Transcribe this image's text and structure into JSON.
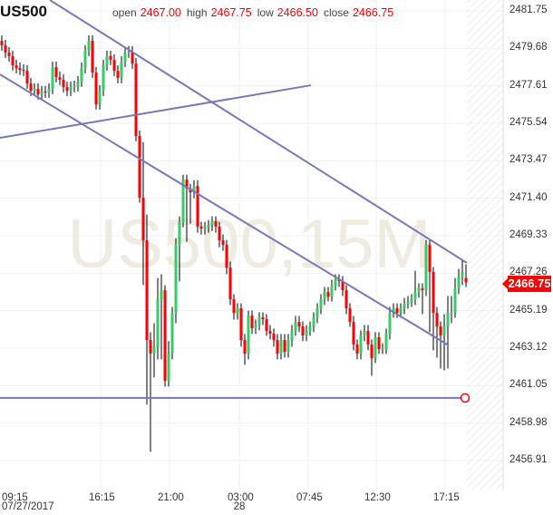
{
  "header": {
    "symbol": "US500",
    "open_label": "open",
    "open": "2467.00",
    "high_label": "high",
    "high": "2467.75",
    "low_label": "low",
    "low": "2466.50",
    "close_label": "close",
    "close": "2466.75"
  },
  "watermark": "US500,15M",
  "current_price": "2466.75",
  "colors": {
    "up": "#33cc66",
    "down": "#ff0000",
    "trendline": "#7777bb",
    "wick": "#000000",
    "badge": "#ff0000"
  },
  "chart_data": {
    "type": "candlestick",
    "interval": "15M",
    "ylim": [
      2456.91,
      2481.75
    ],
    "y_ticks": [
      "2481.75",
      "2479.68",
      "2477.61",
      "2475.54",
      "2473.47",
      "2471.40",
      "2469.33",
      "2467.26",
      "2465.19",
      "2463.12",
      "2461.05",
      "2458.98",
      "2456.91"
    ],
    "x_ticks": [
      {
        "label": "09:15",
        "sub": "07/27/2017"
      },
      {
        "label": "16:15",
        "sub": ""
      },
      {
        "label": "21:00",
        "sub": ""
      },
      {
        "label": "03:00",
        "sub": "28"
      },
      {
        "label": "07:45",
        "sub": ""
      },
      {
        "label": "12:30",
        "sub": ""
      },
      {
        "label": "17:15",
        "sub": ""
      }
    ],
    "grid": true,
    "candles_ohlc": [
      [
        2480.1,
        2480.4,
        2479.55,
        2479.85
      ],
      [
        2479.85,
        2480.15,
        2479.15,
        2479.45
      ],
      [
        2479.45,
        2479.75,
        2478.95,
        2479.25
      ],
      [
        2479.25,
        2479.55,
        2478.45,
        2478.74
      ],
      [
        2478.74,
        2479.05,
        2478.3,
        2478.59
      ],
      [
        2478.59,
        2478.9,
        2478.2,
        2478.49
      ],
      [
        2478.49,
        2478.8,
        2478.15,
        2478.44
      ],
      [
        2478.44,
        2478.75,
        2477.45,
        2477.74
      ],
      [
        2477.74,
        2478.05,
        2477.05,
        2477.34
      ],
      [
        2477.34,
        2477.75,
        2477.05,
        2477.44
      ],
      [
        2477.44,
        2477.75,
        2476.85,
        2477.14
      ],
      [
        2477.14,
        2477.6,
        2476.85,
        2477.29
      ],
      [
        2477.29,
        2477.6,
        2476.95,
        2477.24
      ],
      [
        2477.24,
        2477.75,
        2476.95,
        2477.44
      ],
      [
        2477.44,
        2478.95,
        2477.15,
        2478.64
      ],
      [
        2478.64,
        2478.95,
        2477.8,
        2478.09
      ],
      [
        2478.09,
        2478.4,
        2477.65,
        2477.94
      ],
      [
        2477.94,
        2478.25,
        2477.25,
        2477.54
      ],
      [
        2477.54,
        2477.85,
        2477.05,
        2477.34
      ],
      [
        2477.34,
        2477.85,
        2477.05,
        2477.54
      ],
      [
        2477.54,
        2477.9,
        2477.25,
        2477.59
      ],
      [
        2477.59,
        2478.15,
        2477.3,
        2477.84
      ],
      [
        2477.84,
        2478.9,
        2477.55,
        2478.59
      ],
      [
        2478.59,
        2479.85,
        2478.3,
        2479.55
      ],
      [
        2479.55,
        2480.4,
        2479.25,
        2480.1
      ],
      [
        2480.1,
        2480.4,
        2478.05,
        2478.34
      ],
      [
        2478.34,
        2478.65,
        2476.3,
        2476.59
      ],
      [
        2476.59,
        2477.65,
        2476.3,
        2477.34
      ],
      [
        2477.34,
        2479.05,
        2477.05,
        2478.74
      ],
      [
        2478.74,
        2479.55,
        2478.45,
        2479.25
      ],
      [
        2479.25,
        2479.55,
        2478.75,
        2479.04
      ],
      [
        2479.04,
        2479.35,
        2478.15,
        2478.44
      ],
      [
        2478.44,
        2478.75,
        2477.75,
        2478.04
      ],
      [
        2478.04,
        2479.25,
        2477.75,
        2478.94
      ],
      [
        2478.94,
        2479.75,
        2478.65,
        2479.45
      ],
      [
        2479.45,
        2479.8,
        2479.15,
        2479.5
      ],
      [
        2479.5,
        2479.8,
        2478.55,
        2478.84
      ],
      [
        2478.84,
        2479.15,
        2474.55,
        2474.84
      ],
      [
        2474.84,
        2475.15,
        2471.15,
        2471.43
      ],
      [
        2471.43,
        2474.5,
        2466.6,
        2469.08
      ],
      [
        2469.08,
        2470.5,
        2460.0,
        2463.57
      ],
      [
        2463.57,
        2464.0,
        2457.4,
        2462.82
      ],
      [
        2462.82,
        2464.5,
        2461.5,
        2463.17
      ],
      [
        2463.17,
        2467.0,
        2462.5,
        2465.82
      ],
      [
        2465.82,
        2467.2,
        2462.5,
        2466.32
      ],
      [
        2466.32,
        2466.6,
        2461.0,
        2461.32
      ],
      [
        2461.32,
        2463.5,
        2461.0,
        2462.82
      ],
      [
        2462.82,
        2465.4,
        2462.5,
        2465.07
      ],
      [
        2465.07,
        2469.2,
        2464.5,
        2468.83
      ],
      [
        2468.83,
        2470.4,
        2466.8,
        2470.08
      ],
      [
        2470.08,
        2472.7,
        2469.8,
        2472.43
      ],
      [
        2472.43,
        2472.7,
        2469.0,
        2471.93
      ],
      [
        2471.93,
        2472.2,
        2470.0,
        2471.73
      ],
      [
        2471.73,
        2472.4,
        2471.4,
        2472.08
      ],
      [
        2472.08,
        2472.4,
        2469.5,
        2469.83
      ],
      [
        2469.83,
        2470.1,
        2469.4,
        2469.73
      ],
      [
        2469.73,
        2470.1,
        2469.4,
        2469.83
      ],
      [
        2469.83,
        2470.2,
        2469.5,
        2469.93
      ],
      [
        2469.93,
        2470.4,
        2469.6,
        2470.13
      ],
      [
        2470.13,
        2470.4,
        2469.5,
        2469.83
      ],
      [
        2469.83,
        2470.1,
        2468.7,
        2469.08
      ],
      [
        2469.08,
        2469.4,
        2468.5,
        2468.83
      ],
      [
        2468.83,
        2469.1,
        2467.2,
        2467.58
      ],
      [
        2467.58,
        2467.9,
        2465.5,
        2465.82
      ],
      [
        2465.82,
        2466.1,
        2464.7,
        2465.07
      ],
      [
        2465.07,
        2465.6,
        2464.7,
        2465.32
      ],
      [
        2465.32,
        2465.6,
        2463.2,
        2463.57
      ],
      [
        2463.57,
        2463.9,
        2462.2,
        2462.82
      ],
      [
        2462.82,
        2465.2,
        2462.5,
        2464.92
      ],
      [
        2464.92,
        2465.2,
        2463.9,
        2464.22
      ],
      [
        2464.22,
        2464.7,
        2463.9,
        2464.42
      ],
      [
        2464.42,
        2465.1,
        2464.1,
        2464.82
      ],
      [
        2464.82,
        2465.1,
        2464.4,
        2464.72
      ],
      [
        2464.72,
        2465.0,
        2463.8,
        2464.07
      ],
      [
        2464.07,
        2464.4,
        2463.6,
        2463.92
      ],
      [
        2463.92,
        2464.2,
        2463.2,
        2463.57
      ],
      [
        2463.57,
        2463.9,
        2462.5,
        2462.82
      ],
      [
        2462.82,
        2463.9,
        2462.5,
        2463.57
      ],
      [
        2463.57,
        2463.9,
        2462.6,
        2462.92
      ],
      [
        2462.92,
        2463.9,
        2462.6,
        2463.57
      ],
      [
        2463.57,
        2464.4,
        2463.2,
        2464.07
      ],
      [
        2464.07,
        2464.9,
        2463.8,
        2464.57
      ],
      [
        2464.57,
        2464.9,
        2464.0,
        2464.32
      ],
      [
        2464.32,
        2464.6,
        2463.5,
        2463.82
      ],
      [
        2463.82,
        2464.4,
        2463.5,
        2464.07
      ],
      [
        2464.07,
        2464.6,
        2463.8,
        2464.32
      ],
      [
        2464.32,
        2465.1,
        2464.0,
        2464.82
      ],
      [
        2464.82,
        2465.6,
        2464.5,
        2465.32
      ],
      [
        2465.32,
        2466.1,
        2465.0,
        2465.82
      ],
      [
        2465.82,
        2466.5,
        2465.5,
        2466.22
      ],
      [
        2466.22,
        2466.5,
        2465.7,
        2465.97
      ],
      [
        2465.97,
        2466.9,
        2465.7,
        2466.57
      ],
      [
        2466.57,
        2467.2,
        2466.3,
        2466.92
      ],
      [
        2466.92,
        2467.2,
        2466.5,
        2466.82
      ],
      [
        2466.82,
        2467.1,
        2466.0,
        2466.32
      ],
      [
        2466.32,
        2466.6,
        2465.0,
        2465.32
      ],
      [
        2465.32,
        2465.6,
        2464.3,
        2464.57
      ],
      [
        2464.57,
        2464.9,
        2463.0,
        2463.32
      ],
      [
        2463.32,
        2463.6,
        2462.5,
        2462.82
      ],
      [
        2462.82,
        2464.1,
        2462.5,
        2463.82
      ],
      [
        2463.82,
        2464.4,
        2463.5,
        2464.07
      ],
      [
        2464.07,
        2464.4,
        2463.0,
        2463.32
      ],
      [
        2463.32,
        2463.6,
        2461.6,
        2462.57
      ],
      [
        2462.57,
        2464.0,
        2462.3,
        2463.72
      ],
      [
        2463.72,
        2464.0,
        2462.8,
        2463.07
      ],
      [
        2463.07,
        2463.4,
        2462.8,
        2463.07
      ],
      [
        2463.07,
        2464.2,
        2462.8,
        2463.92
      ],
      [
        2463.92,
        2465.4,
        2463.6,
        2465.07
      ],
      [
        2465.07,
        2465.6,
        2464.8,
        2465.32
      ],
      [
        2465.32,
        2465.6,
        2464.8,
        2465.07
      ],
      [
        2465.07,
        2465.6,
        2464.8,
        2465.32
      ],
      [
        2465.32,
        2465.9,
        2465.0,
        2465.57
      ],
      [
        2465.57,
        2466.0,
        2465.3,
        2465.67
      ],
      [
        2465.67,
        2466.1,
        2465.4,
        2465.82
      ],
      [
        2465.82,
        2467.4,
        2465.5,
        2466.22
      ],
      [
        2466.22,
        2466.7,
        2465.9,
        2466.42
      ],
      [
        2466.42,
        2466.7,
        2465.0,
        2466.32
      ],
      [
        2466.32,
        2469.1,
        2466.0,
        2468.83
      ],
      [
        2468.83,
        2469.1,
        2464.0,
        2467.33
      ],
      [
        2467.33,
        2467.6,
        2463.0,
        2465.07
      ],
      [
        2465.07,
        2465.4,
        2462.6,
        2464.32
      ],
      [
        2464.32,
        2464.6,
        2462.0,
        2463.82
      ],
      [
        2463.82,
        2465.0,
        2461.9,
        2464.32
      ],
      [
        2464.32,
        2466.0,
        2462.0,
        2465.07
      ],
      [
        2465.07,
        2466.0,
        2464.5,
        2465.07
      ],
      [
        2465.07,
        2467.0,
        2464.8,
        2466.42
      ],
      [
        2466.42,
        2467.5,
        2466.1,
        2467.08
      ],
      [
        2467.08,
        2468.0,
        2466.6,
        2467.33
      ],
      [
        2467.0,
        2467.75,
        2466.5,
        2466.75
      ]
    ],
    "trendlines": [
      {
        "from": [
          13.25,
          2482.35
        ],
        "to": [
          128.25,
          2467.83
        ]
      },
      {
        "from": [
          -0.5,
          2478.24
        ],
        "to": [
          123.25,
          2463.27
        ]
      },
      {
        "from": [
          -0.5,
          2474.74
        ],
        "to": [
          85.25,
          2477.64
        ]
      }
    ],
    "horizontal_line": 2460.37
  }
}
